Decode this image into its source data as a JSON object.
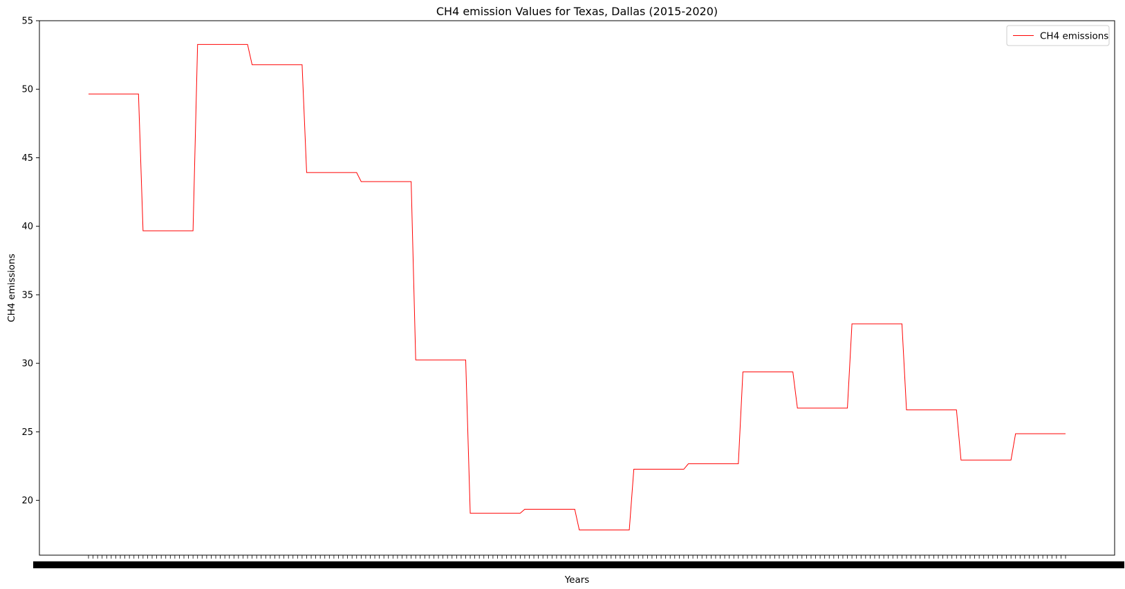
{
  "chart_data": {
    "type": "line",
    "title": "CH4 emission Values for Texas, Dallas (2015-2020)",
    "xlabel": "Years",
    "ylabel": "CH4 emissions",
    "ylim": [
      16,
      55
    ],
    "yticks": [
      20,
      25,
      30,
      35,
      40,
      45,
      50,
      55
    ],
    "legend": {
      "placement": "top-right",
      "entries": [
        "CH4 emissions"
      ]
    },
    "grid": false,
    "line_color": "#ff0000",
    "x_tick_count": 216,
    "series": [
      {
        "name": "CH4 emissions",
        "segments": [
          {
            "count": 12,
            "value": 49.65
          },
          {
            "count": 12,
            "value": 39.67
          },
          {
            "count": 12,
            "value": 53.27
          },
          {
            "count": 12,
            "value": 51.79
          },
          {
            "count": 12,
            "value": 43.92
          },
          {
            "count": 12,
            "value": 43.26
          },
          {
            "count": 12,
            "value": 30.25
          },
          {
            "count": 12,
            "value": 19.06
          },
          {
            "count": 12,
            "value": 19.35
          },
          {
            "count": 12,
            "value": 17.84
          },
          {
            "count": 12,
            "value": 22.27
          },
          {
            "count": 12,
            "value": 22.67
          },
          {
            "count": 12,
            "value": 29.37
          },
          {
            "count": 12,
            "value": 26.73
          },
          {
            "count": 12,
            "value": 32.88
          },
          {
            "count": 12,
            "value": 26.6
          },
          {
            "count": 12,
            "value": 22.94
          },
          {
            "count": 12,
            "value": 24.86
          }
        ]
      }
    ]
  }
}
